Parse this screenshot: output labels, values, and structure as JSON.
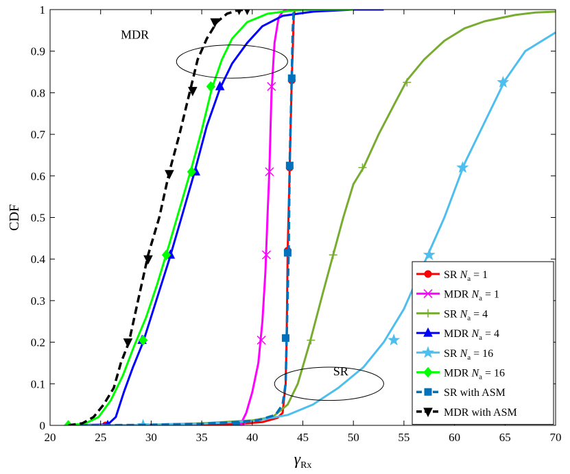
{
  "chart_data": {
    "type": "line",
    "xlabel": "γ",
    "xlabel_sub": "Rx",
    "ylabel": "CDF",
    "xlim": [
      20,
      70
    ],
    "ylim": [
      0,
      1
    ],
    "xticks": [
      20,
      25,
      30,
      35,
      40,
      45,
      50,
      55,
      60,
      65,
      70
    ],
    "yticks": [
      0,
      0.1,
      0.2,
      0.3,
      0.4,
      0.5,
      0.6,
      0.7,
      0.8,
      0.9,
      1
    ],
    "xtick_labels": [
      "20",
      "25",
      "30",
      "35",
      "40",
      "45",
      "50",
      "55",
      "60",
      "65",
      "70"
    ],
    "ytick_labels": [
      "0",
      "0.1",
      "0.2",
      "0.3",
      "0.4",
      "0.5",
      "0.6",
      "0.7",
      "0.8",
      "0.9",
      "1"
    ],
    "grid": false,
    "legend_position": "bottom-right",
    "annotations": [
      {
        "text": "MDR",
        "x": 27,
        "y": 0.93,
        "ellipse": {
          "cx": 38,
          "cy": 0.875,
          "rx": 5.5,
          "ry": 0.04
        }
      },
      {
        "text": "SR",
        "x": 48,
        "y": 0.12,
        "ellipse": {
          "cx": 47.6,
          "cy": 0.1,
          "rx": 5.4,
          "ry": 0.04
        }
      }
    ],
    "series": [
      {
        "name": "SR",
        "sub_label": "N",
        "sub_index": "a",
        "value_label": "= 1",
        "color": "#ff0000",
        "marker": "circle",
        "dash": "solid",
        "x": [
          21.8,
          25.5,
          29.2,
          35,
          38.5,
          41,
          42.5,
          43,
          43.3,
          43.4,
          43.5,
          43.7,
          43.9,
          44.0,
          44.1,
          44.2
        ],
        "y": [
          0,
          0,
          0,
          0.001,
          0.003,
          0.008,
          0.018,
          0.03,
          0.1,
          0.21,
          0.42,
          0.62,
          0.83,
          0.9,
          0.98,
          1.0
        ],
        "markers_x": [
          25.5,
          38.4,
          43.3,
          43.5,
          43.7,
          43.9
        ],
        "markers_y": [
          0,
          0,
          0.21,
          0.42,
          0.62,
          0.83
        ]
      },
      {
        "name": "MDR",
        "sub_label": "N",
        "sub_index": "a",
        "value_label": "= 1",
        "color": "#ff00ff",
        "marker": "x",
        "dash": "solid",
        "x": [
          38.8,
          39.4,
          40.0,
          40.6,
          41.0,
          41.3,
          41.5,
          41.7,
          41.9,
          42.2,
          42.6,
          43.0,
          43.4
        ],
        "y": [
          0,
          0.03,
          0.08,
          0.15,
          0.25,
          0.37,
          0.5,
          0.62,
          0.8,
          0.92,
          0.98,
          0.995,
          1.0
        ],
        "markers_x": [
          39.1,
          40.9,
          41.4,
          41.7,
          41.9
        ],
        "markers_y": [
          0,
          0.205,
          0.41,
          0.61,
          0.815
        ]
      },
      {
        "name": "SR",
        "sub_label": "N",
        "sub_index": "a",
        "value_label": "= 4",
        "color": "#77ac30",
        "marker": "plus",
        "dash": "solid",
        "x": [
          21.8,
          29,
          35,
          40,
          42,
          43.5,
          44.5,
          45.7,
          47,
          48,
          49,
          50,
          51,
          52.5,
          54,
          55.3,
          57,
          59,
          61,
          63,
          66,
          68,
          70
        ],
        "y": [
          0,
          0.001,
          0.005,
          0.012,
          0.02,
          0.05,
          0.1,
          0.2,
          0.32,
          0.41,
          0.5,
          0.58,
          0.62,
          0.7,
          0.77,
          0.83,
          0.88,
          0.925,
          0.955,
          0.972,
          0.987,
          0.993,
          0.995
        ],
        "markers_x": [
          29.2,
          45.8,
          48.0,
          50.9,
          55.3
        ],
        "markers_y": [
          0,
          0.205,
          0.41,
          0.62,
          0.825
        ]
      },
      {
        "name": "MDR",
        "sub_label": "N",
        "sub_index": "a",
        "value_label": "= 4",
        "color": "#0000ff",
        "marker": "triangle-up",
        "dash": "solid",
        "x": [
          21.8,
          25.7,
          26.5,
          27.3,
          28.2,
          29.2,
          30.5,
          31.8,
          33,
          34.3,
          35.5,
          36.8,
          38,
          39.5,
          41,
          43,
          46,
          50,
          53
        ],
        "y": [
          0,
          0.002,
          0.02,
          0.08,
          0.14,
          0.2,
          0.3,
          0.4,
          0.5,
          0.61,
          0.72,
          0.81,
          0.87,
          0.92,
          0.96,
          0.985,
          0.995,
          1.0,
          1.0
        ],
        "markers_x": [
          25.7,
          29.1,
          31.9,
          34.4,
          36.8
        ],
        "markers_y": [
          0,
          0.205,
          0.41,
          0.61,
          0.815
        ]
      },
      {
        "name": "SR",
        "sub_label": "N",
        "sub_index": "a",
        "value_label": "= 16",
        "color": "#4dbeee",
        "marker": "star",
        "dash": "solid",
        "x": [
          21.8,
          29.2,
          35,
          40,
          43.5,
          46,
          48.5,
          51,
          53,
          55,
          57,
          59,
          61,
          63,
          65,
          67,
          70
        ],
        "y": [
          0,
          0.001,
          0.004,
          0.01,
          0.025,
          0.05,
          0.09,
          0.14,
          0.2,
          0.28,
          0.39,
          0.5,
          0.63,
          0.73,
          0.83,
          0.9,
          0.945
        ],
        "markers_x": [
          29.2,
          54.0,
          57.5,
          60.8,
          64.8
        ],
        "markers_y": [
          0,
          0.205,
          0.41,
          0.62,
          0.825
        ]
      },
      {
        "name": "MDR",
        "sub_label": "N",
        "sub_index": "a",
        "value_label": "= 16",
        "color": "#00ff00",
        "marker": "diamond",
        "dash": "solid",
        "x": [
          21.8,
          23.5,
          24.8,
          26,
          27.2,
          28.3,
          29.5,
          30.6,
          31.6,
          32.8,
          34,
          35,
          36,
          37,
          38,
          39.5,
          41.5,
          44,
          47,
          50
        ],
        "y": [
          0,
          0.005,
          0.02,
          0.06,
          0.12,
          0.19,
          0.26,
          0.34,
          0.42,
          0.52,
          0.62,
          0.71,
          0.81,
          0.88,
          0.93,
          0.97,
          0.99,
          0.998,
          1.0,
          1.0
        ],
        "markers_x": [
          21.8,
          29.2,
          31.5,
          34.0,
          35.9
        ],
        "markers_y": [
          0,
          0.205,
          0.41,
          0.61,
          0.815
        ]
      },
      {
        "name": "SR with ASM",
        "sub_label": "",
        "sub_index": "",
        "value_label": "",
        "color": "#0072bd",
        "marker": "square",
        "dash": "dashed",
        "x": [
          21.8,
          29,
          35,
          38.4,
          40.5,
          42.3,
          43.0,
          43.3,
          43.4,
          43.6,
          43.7,
          43.9,
          44.0,
          44.1
        ],
        "y": [
          0,
          0.001,
          0.004,
          0.008,
          0.012,
          0.025,
          0.05,
          0.1,
          0.21,
          0.42,
          0.63,
          0.835,
          0.95,
          1.0
        ],
        "markers_x": [
          38.4,
          43.3,
          43.5,
          43.7,
          43.9
        ],
        "markers_y": [
          0,
          0.21,
          0.415,
          0.625,
          0.835
        ]
      },
      {
        "name": "MDR with ASM",
        "sub_label": "",
        "sub_index": "",
        "value_label": "",
        "color": "#000000",
        "marker": "triangle-down",
        "dash": "dashed",
        "x": [
          21.8,
          23.2,
          24.3,
          25.3,
          26.3,
          27.0,
          27.8,
          28.7,
          29.7,
          30.8,
          31.8,
          32.8,
          33.8,
          34.6,
          35.5,
          36.5,
          37.5,
          38.5,
          39.5
        ],
        "y": [
          0,
          0.005,
          0.02,
          0.05,
          0.09,
          0.15,
          0.2,
          0.3,
          0.41,
          0.5,
          0.61,
          0.7,
          0.8,
          0.88,
          0.93,
          0.97,
          0.99,
          0.998,
          1.0
        ],
        "markers_x": [
          27.7,
          29.7,
          31.8,
          34.1,
          36.3,
          38.7,
          39.5
        ],
        "markers_y": [
          0.2,
          0.4,
          0.605,
          0.805,
          0.97,
          1.0,
          1.0
        ]
      }
    ]
  }
}
